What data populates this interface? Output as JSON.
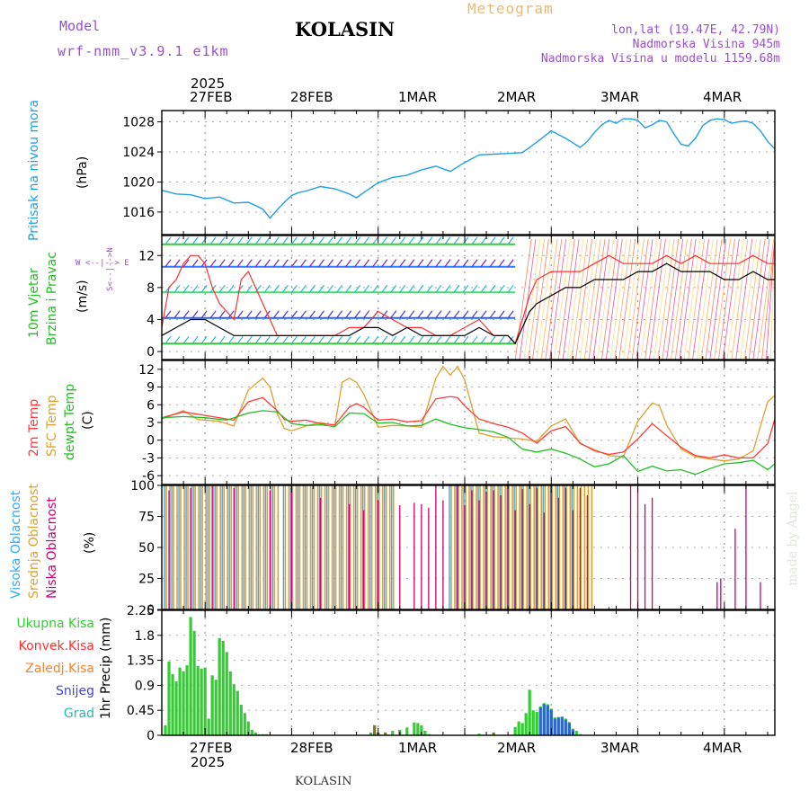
{
  "header": {
    "model_label": "Model",
    "model_name": "wrf-nmm_v3.9.1  e1km",
    "station": "KOLASIN",
    "product": "Meteogram",
    "coords": "lon,lat (19.47E, 42.79N)",
    "elevation": "Nadmorska Visina 945m",
    "model_elevation": "Nadmorska Visina u modelu 1159.68m"
  },
  "footer": {
    "station": "KOLASIN",
    "watermark": "made by Angel"
  },
  "time_axis": {
    "year": "2025",
    "labels": [
      "27FEB",
      "28FEB",
      "1MAR",
      "2MAR",
      "3MAR",
      "4MAR"
    ]
  },
  "colors": {
    "pressure": "#1ea0e6",
    "wind_red": "#ff3030",
    "wind_black": "#000000",
    "temp_2m": "#ff3b3b",
    "temp_sfc": "#e0a030",
    "dewpoint": "#20c020",
    "cloud_high": "#33aaff",
    "cloud_mid": "#e0a030",
    "cloud_low": "#cc0077",
    "precip_total": "#33cc33",
    "precip_conv": "#3366cc",
    "precip_frozen": "#887722"
  },
  "panels": {
    "pressure": {
      "ylabel_name": "Pritisak na nivou mora",
      "unit": "(hPa)",
      "ticks": [
        "1016",
        "1020",
        "1024",
        "1028"
      ]
    },
    "wind": {
      "ylabel_a": "10m Vjetar",
      "ylabel_b": "Brzina i Pravac",
      "unit": "(m/s)",
      "ticks": [
        "0",
        "4",
        "8",
        "12"
      ],
      "compass": "W <--|--> E",
      "compass_v": "S<--|-->N"
    },
    "temp": {
      "label_2m": "2m Temp",
      "label_sfc": "SFC Temp",
      "label_dew": "dewpt Temp",
      "unit": "(C)",
      "ticks": [
        "-6",
        "-3",
        "0",
        "3",
        "6",
        "9",
        "12"
      ]
    },
    "cloud": {
      "label_high": "Visoka Oblacnost",
      "label_mid": "Srednja Oblacnost",
      "label_low": "Niska Oblacnost",
      "unit": "(%)",
      "ticks": [
        "0",
        "25",
        "50",
        "75",
        "100"
      ]
    },
    "precip": {
      "labels": [
        "Ukupna Kisa",
        "Konvek.Kisa",
        "Zaledj.Kisa",
        "Snijeg",
        "Grad"
      ],
      "label_colors": [
        "#33cc33",
        "#ff3030",
        "#ff7f27",
        "#4444dd",
        "#22bbbb"
      ],
      "unit": "1hr Precip (mm)",
      "ticks": [
        "0",
        "0.45",
        "0.9",
        "1.35",
        "1.8",
        "2.25"
      ]
    }
  },
  "chart_data": [
    {
      "type": "line",
      "title": "Pritisak na nivou mora",
      "ylabel": "(hPa)",
      "ylim": [
        1013,
        1029.5
      ],
      "x_unit": "hours from 26FEB 12UTC",
      "series": [
        {
          "name": "Pritisak na nivou mora",
          "x": [
            0,
            4,
            8,
            12,
            16,
            20,
            24,
            28,
            30,
            32,
            34,
            36,
            38,
            40,
            44,
            48,
            52,
            54,
            56,
            60,
            64,
            68,
            72,
            76,
            80,
            84,
            88,
            92,
            96,
            100,
            104,
            108,
            112,
            116,
            118,
            120,
            122,
            124,
            126,
            128,
            130,
            132,
            134,
            136,
            138,
            140,
            142,
            144,
            146,
            148,
            150,
            152,
            154,
            156,
            158,
            160,
            162,
            164,
            166,
            168,
            170
          ],
          "values": [
            1018.9,
            1018.4,
            1018.3,
            1017.8,
            1018.0,
            1017.2,
            1017.3,
            1016.4,
            1015.2,
            1016.3,
            1017.3,
            1018.2,
            1018.6,
            1018.8,
            1019.4,
            1019.1,
            1018.4,
            1017.9,
            1018.6,
            1019.9,
            1020.6,
            1020.9,
            1021.6,
            1022.1,
            1021.4,
            1022.6,
            1023.6,
            1023.7,
            1023.8,
            1023.9,
            1025.3,
            1026.8,
            1025.8,
            1024.6,
            1025.4,
            1026.6,
            1027.6,
            1028.2,
            1027.8,
            1028.4,
            1028.4,
            1028.2,
            1027.2,
            1027.6,
            1028.2,
            1028.0,
            1026.4,
            1025.0,
            1024.8,
            1025.8,
            1027.5,
            1028.2,
            1028.4,
            1028.3,
            1027.8,
            1028.0,
            1028.1,
            1027.8,
            1026.8,
            1025.4,
            1024.4
          ]
        }
      ]
    },
    {
      "type": "line",
      "title": "10m Vjetar Brzina i Pravac",
      "ylabel": "(m/s)",
      "ylim": [
        -1,
        14.5
      ],
      "x_unit": "hours from 26FEB 12UTC",
      "series": [
        {
          "name": "gust",
          "x": [
            0,
            2,
            4,
            6,
            8,
            10,
            12,
            14,
            16,
            18,
            20,
            22,
            24,
            26,
            28,
            30,
            32,
            36,
            40,
            44,
            48,
            52,
            56,
            60,
            64,
            68,
            72,
            76,
            80,
            84,
            88,
            92,
            96,
            98,
            100,
            102,
            104,
            108,
            112,
            116,
            120,
            124,
            128,
            132,
            136,
            140,
            144,
            148,
            152,
            156,
            160,
            164,
            168,
            170
          ],
          "values": [
            3,
            8,
            9,
            11,
            12,
            12,
            11,
            8,
            6,
            5,
            4,
            9,
            10,
            8,
            6,
            4,
            2,
            2,
            2,
            2,
            2,
            3,
            3,
            5,
            4,
            3,
            3,
            2,
            2,
            3,
            4,
            2,
            2,
            1,
            4,
            7,
            9,
            10,
            10,
            10,
            11,
            12,
            11,
            11,
            11,
            12,
            11,
            12,
            11,
            11,
            11,
            12,
            11,
            11
          ]
        },
        {
          "name": "speed",
          "x": [
            0,
            4,
            8,
            12,
            16,
            20,
            24,
            28,
            32,
            36,
            40,
            44,
            48,
            52,
            56,
            60,
            64,
            68,
            72,
            76,
            80,
            84,
            88,
            92,
            96,
            98,
            100,
            102,
            104,
            108,
            112,
            116,
            120,
            124,
            128,
            132,
            136,
            140,
            144,
            148,
            152,
            156,
            160,
            164,
            168,
            170
          ],
          "values": [
            2,
            3,
            4,
            4,
            3,
            2,
            2,
            2,
            2,
            2,
            2,
            2,
            2,
            2,
            3,
            3,
            2,
            3,
            2,
            2,
            2,
            2,
            3,
            2,
            2,
            1,
            3,
            5,
            6,
            7,
            8,
            8,
            9,
            9,
            9,
            10,
            10,
            11,
            10,
            10,
            10,
            9,
            9,
            10,
            9,
            9
          ]
        }
      ]
    },
    {
      "type": "line",
      "title": "Temp",
      "ylabel": "(C)",
      "ylim": [
        -7.5,
        13.5
      ],
      "x_unit": "hours from 26FEB 12UTC",
      "series": [
        {
          "name": "2m Temp",
          "x": [
            0,
            6,
            12,
            18,
            20,
            24,
            28,
            32,
            34,
            36,
            40,
            44,
            48,
            52,
            54,
            56,
            60,
            64,
            68,
            72,
            76,
            80,
            82,
            84,
            88,
            92,
            96,
            100,
            104,
            108,
            112,
            116,
            120,
            124,
            128,
            132,
            136,
            140,
            144,
            148,
            152,
            156,
            160,
            164,
            168,
            170
          ],
          "values": [
            3.8,
            4.8,
            4.2,
            3.6,
            3.4,
            6.5,
            7.2,
            5,
            3.5,
            3.2,
            3.4,
            2.8,
            2.6,
            5.6,
            6.2,
            5.6,
            3.4,
            3.6,
            3.1,
            3.3,
            7,
            7.4,
            7.2,
            5.8,
            3.6,
            2.8,
            2.2,
            1.2,
            -0.5,
            1.6,
            2.3,
            -0.5,
            -1.8,
            -2.4,
            -2.0,
            0.2,
            2.8,
            0.8,
            -1.2,
            -2.6,
            -3,
            -2.5,
            -3.0,
            -3,
            -0.6,
            3.6
          ]
        },
        {
          "name": "SFC Temp",
          "x": [
            0,
            6,
            10,
            12,
            16,
            18,
            20,
            24,
            28,
            30,
            32,
            34,
            36,
            40,
            44,
            48,
            50,
            52,
            54,
            56,
            60,
            64,
            68,
            72,
            76,
            78,
            80,
            82,
            84,
            88,
            92,
            96,
            100,
            104,
            108,
            112,
            116,
            120,
            124,
            128,
            132,
            136,
            138,
            140,
            144,
            148,
            152,
            156,
            160,
            164,
            168,
            170
          ],
          "values": [
            3.6,
            5,
            3.5,
            3.4,
            3.2,
            2.8,
            2.4,
            8.5,
            10.5,
            9,
            4.5,
            2,
            1.6,
            2.4,
            3,
            2.5,
            9.8,
            10.5,
            9.8,
            7.8,
            2.2,
            2.5,
            2.4,
            2.2,
            10.5,
            12.5,
            11,
            12.5,
            10.2,
            1.2,
            0.6,
            0.4,
            0.2,
            -0.2,
            2.4,
            3.6,
            -0.6,
            -1.6,
            -2.6,
            -2.8,
            3.2,
            6.3,
            5.8,
            2.6,
            -1.5,
            -2.8,
            -3.2,
            -3.5,
            -3.2,
            -1.8,
            6.5,
            7.6
          ]
        },
        {
          "name": "dewpt Temp",
          "x": [
            0,
            6,
            12,
            18,
            24,
            28,
            32,
            36,
            40,
            44,
            48,
            52,
            56,
            60,
            64,
            68,
            72,
            76,
            80,
            84,
            88,
            92,
            96,
            100,
            104,
            108,
            112,
            116,
            120,
            124,
            128,
            132,
            136,
            140,
            144,
            148,
            152,
            156,
            160,
            164,
            168,
            170
          ],
          "values": [
            3.8,
            4.0,
            3.8,
            3.4,
            4.6,
            5,
            4.8,
            2.8,
            2.5,
            2.6,
            2.3,
            4.6,
            4.5,
            2.9,
            3,
            2.4,
            2.5,
            3.6,
            2.7,
            2.1,
            1.8,
            1.4,
            0.5,
            -1.5,
            -2.0,
            -1.5,
            -2.2,
            -3.2,
            -4.5,
            -4.0,
            -2.6,
            -5.3,
            -4.4,
            -5.2,
            -5,
            -5.8,
            -4.8,
            -4,
            -3.8,
            -3.4,
            -5,
            -4
          ]
        }
      ]
    },
    {
      "type": "bar",
      "title": "Oblacnost",
      "ylabel": "(%)",
      "ylim": [
        0,
        100
      ],
      "x_unit": "hours from 26FEB 12UTC",
      "series": [
        {
          "name": "Visoka Oblacnost",
          "segments": [
            {
              "from": 1,
              "to": 32,
              "value": 100
            },
            {
              "from": 34,
              "to": 64,
              "value": 100
            },
            {
              "from": 80,
              "to": 115,
              "value": 100
            }
          ]
        },
        {
          "name": "Srednja Oblacnost",
          "segments": [
            {
              "from": 1,
              "to": 32,
              "value": 100
            },
            {
              "from": 34,
              "to": 64,
              "value": 100
            },
            {
              "from": 80,
              "to": 119,
              "value": 100
            }
          ]
        },
        {
          "name": "Niska Oblacnost",
          "x": [
            2,
            8,
            14,
            20,
            30,
            36,
            44,
            52,
            56,
            60,
            66,
            70,
            72,
            74,
            76,
            78,
            82,
            84,
            86,
            88,
            90,
            92,
            94,
            96,
            98,
            100,
            102,
            104,
            106,
            108,
            110,
            112,
            114,
            116,
            118,
            124,
            130,
            132,
            134,
            136,
            154,
            155,
            156,
            159,
            162,
            166
          ],
          "values": [
            96,
            98,
            100,
            98,
            96,
            98,
            90,
            85,
            80,
            88,
            84,
            86,
            85,
            82,
            100,
            88,
            100,
            84,
            96,
            88,
            95,
            96,
            92,
            100,
            80,
            97,
            85,
            98,
            78,
            96,
            90,
            98,
            80,
            98,
            92,
            2,
            100,
            98,
            85,
            90,
            22,
            25,
            2,
            65,
            100,
            22
          ]
        }
      ]
    },
    {
      "type": "bar",
      "title": "1hr Precip",
      "ylabel": "(mm)",
      "ylim": [
        0,
        2.25
      ],
      "x_unit": "hours from 26FEB 12UTC",
      "series": [
        {
          "name": "Ukupna Kisa",
          "x": [
            1,
            2,
            3,
            4,
            5,
            6,
            7,
            8,
            9,
            10,
            11,
            12,
            13,
            14,
            15,
            16,
            17,
            18,
            19,
            20,
            21,
            22,
            23,
            24,
            25,
            26,
            27,
            28,
            29,
            30,
            58,
            59,
            60,
            62,
            64,
            66,
            68,
            70,
            71,
            72,
            73,
            74,
            88,
            92,
            98,
            99,
            100,
            101,
            102,
            103,
            104,
            105,
            106,
            107,
            108,
            109,
            110,
            111,
            112,
            113,
            114,
            115,
            116
          ],
          "values": [
            0.18,
            1.33,
            1.1,
            0.97,
            1.22,
            1.15,
            1.26,
            2.13,
            1.88,
            1.25,
            1.2,
            1.22,
            0.3,
            1.08,
            1.0,
            1.75,
            1.7,
            1.5,
            1.15,
            0.92,
            0.8,
            0.55,
            0.4,
            0.25,
            0.1,
            0.05,
            0.02,
            0.02,
            0.02,
            0.01,
            0.05,
            0.18,
            0.05,
            0.05,
            0.08,
            0.1,
            0.14,
            0.23,
            0.22,
            0.18,
            0.08,
            0.02,
            0.03,
            0.05,
            0.15,
            0.25,
            0.22,
            0.4,
            0.82,
            0.45,
            0.42,
            0.52,
            0.58,
            0.56,
            0.48,
            0.32,
            0.33,
            0.34,
            0.3,
            0.24,
            0.12,
            0.08,
            0.02
          ]
        },
        {
          "name": "Snijeg",
          "x": [
            105,
            106,
            107,
            108,
            109,
            110,
            111,
            112,
            113,
            114
          ],
          "values": [
            0.5,
            0.56,
            0.54,
            0.46,
            0.3,
            0.32,
            0.32,
            0.28,
            0.22,
            0.1
          ]
        },
        {
          "name": "Zaledj.Kisa",
          "x": [
            59,
            60,
            62,
            92
          ],
          "values": [
            0.18,
            0.05,
            0.05,
            0.05
          ]
        }
      ]
    }
  ]
}
